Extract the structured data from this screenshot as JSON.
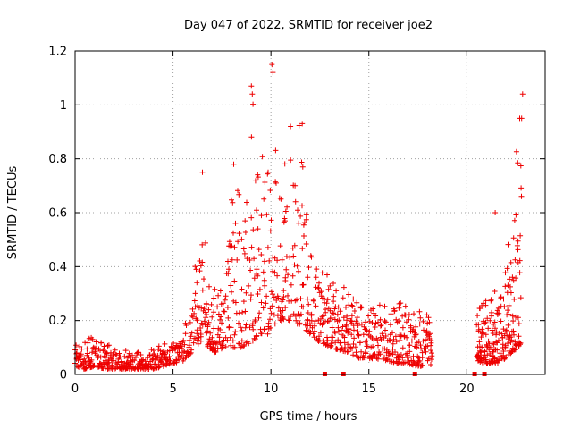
{
  "chart_data": {
    "type": "scatter",
    "title": "Day 047 of 2022, SRMTID for receiver joe2",
    "xlabel": "GPS time / hours",
    "ylabel": "SRMTID / TECUs",
    "xlim": [
      0,
      24
    ],
    "ylim": [
      0,
      1.2
    ],
    "xticks": [
      0,
      5,
      10,
      15,
      20
    ],
    "yticks": [
      0,
      0.2,
      0.4,
      0.6,
      0.8,
      1,
      1.2
    ],
    "x_tick_labels": [
      "0",
      "5",
      "10",
      "15",
      "20"
    ],
    "y_tick_labels": [
      "0",
      "0.2",
      "0.4",
      "0.6",
      "0.8",
      "1",
      "1.2"
    ],
    "grid": true,
    "marker": "+",
    "color": "#ee0000",
    "series": [
      {
        "name": "SRMTID",
        "segments": [
          {
            "x_start": 0.0,
            "x_end": 18.2,
            "x_step": 0.05,
            "envelope": [
              [
                0.0,
                0.03,
                0.12
              ],
              [
                0.5,
                0.02,
                0.13
              ],
              [
                1.0,
                0.03,
                0.14
              ],
              [
                1.5,
                0.02,
                0.12
              ],
              [
                2.0,
                0.02,
                0.1
              ],
              [
                2.5,
                0.02,
                0.09
              ],
              [
                3.0,
                0.02,
                0.09
              ],
              [
                3.5,
                0.02,
                0.09
              ],
              [
                4.0,
                0.02,
                0.1
              ],
              [
                4.5,
                0.03,
                0.11
              ],
              [
                5.0,
                0.04,
                0.13
              ],
              [
                5.5,
                0.05,
                0.16
              ],
              [
                5.9,
                0.08,
                0.25
              ],
              [
                6.2,
                0.12,
                0.45
              ],
              [
                6.5,
                0.1,
                0.75
              ],
              [
                6.8,
                0.1,
                0.35
              ],
              [
                7.2,
                0.08,
                0.4
              ],
              [
                7.6,
                0.1,
                0.3
              ],
              [
                8.0,
                0.1,
                0.78
              ],
              [
                8.5,
                0.1,
                0.7
              ],
              [
                9.0,
                0.12,
                1.07
              ],
              [
                9.5,
                0.15,
                0.85
              ],
              [
                10.0,
                0.15,
                1.15
              ],
              [
                10.3,
                0.2,
                0.95
              ],
              [
                10.6,
                0.2,
                0.8
              ],
              [
                11.0,
                0.2,
                0.92
              ],
              [
                11.5,
                0.18,
                0.93
              ],
              [
                12.0,
                0.15,
                0.45
              ],
              [
                12.5,
                0.12,
                0.4
              ],
              [
                13.0,
                0.1,
                0.38
              ],
              [
                13.5,
                0.09,
                0.3
              ],
              [
                14.0,
                0.08,
                0.35
              ],
              [
                14.5,
                0.06,
                0.3
              ],
              [
                15.0,
                0.06,
                0.27
              ],
              [
                15.5,
                0.05,
                0.28
              ],
              [
                16.0,
                0.05,
                0.27
              ],
              [
                16.5,
                0.04,
                0.28
              ],
              [
                17.0,
                0.04,
                0.26
              ],
              [
                17.5,
                0.03,
                0.26
              ],
              [
                18.2,
                0.03,
                0.2
              ]
            ]
          },
          {
            "x_start": 20.5,
            "x_end": 22.8,
            "x_step": 0.03,
            "envelope": [
              [
                20.5,
                0.05,
                0.25
              ],
              [
                21.0,
                0.04,
                0.28
              ],
              [
                21.5,
                0.04,
                0.32
              ],
              [
                22.0,
                0.06,
                0.4
              ],
              [
                22.3,
                0.08,
                0.65
              ],
              [
                22.6,
                0.1,
                0.95
              ],
              [
                22.8,
                0.12,
                1.04
              ]
            ]
          }
        ],
        "peaks": [
          {
            "x": 10.05,
            "y": 1.15
          },
          {
            "x": 10.1,
            "y": 1.12
          },
          {
            "x": 9.0,
            "y": 1.07
          },
          {
            "x": 9.05,
            "y": 1.04
          },
          {
            "x": 22.85,
            "y": 1.04
          },
          {
            "x": 22.7,
            "y": 0.95
          },
          {
            "x": 22.8,
            "y": 0.95
          },
          {
            "x": 11.6,
            "y": 0.93
          },
          {
            "x": 11.0,
            "y": 0.92
          },
          {
            "x": 8.1,
            "y": 0.78
          },
          {
            "x": 6.5,
            "y": 0.75
          },
          {
            "x": 21.45,
            "y": 0.6
          }
        ]
      }
    ],
    "gap_markers": [
      12.75,
      13.7,
      17.35,
      20.4,
      20.9
    ]
  }
}
